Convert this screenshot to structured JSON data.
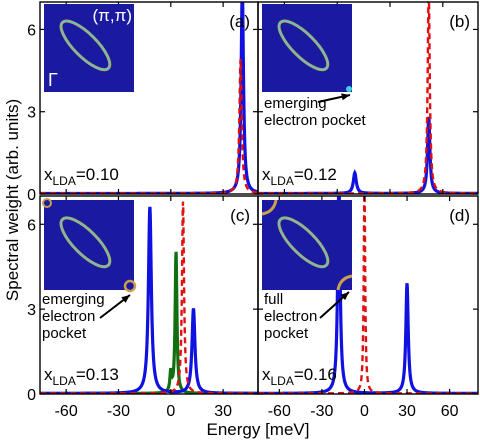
{
  "figure": {
    "ylabel": "Spectral weight (arb. units)",
    "xlabel": "Energy [meV]",
    "x_ticks": [
      "-60",
      "-30",
      "0",
      "30",
      "60"
    ],
    "y_ticks": [
      "0",
      "3",
      "6"
    ]
  },
  "colors": {
    "blue": "#1010e0",
    "red": "#e01010",
    "green": "#107010",
    "inset_bg": "#1a1aa0",
    "contour_outer": "#c8a050",
    "contour_inner": "#40d0e0"
  },
  "chart_data": [
    {
      "type": "line",
      "panel_label": "(a)",
      "doping_label": "x",
      "doping_sub": "LDA",
      "doping_value": "=0.10",
      "inset_corner_labels": [
        "(π,π)",
        "Γ"
      ],
      "annotation": "",
      "xlim": [
        -75,
        50
      ],
      "ylim": [
        0,
        7
      ],
      "series": [
        {
          "color": "blue",
          "style": "solid",
          "peaks": [
            [
              41,
              7.5,
              0.8
            ]
          ]
        },
        {
          "color": "red",
          "style": "dashed",
          "peaks": [
            [
              40,
              4.9,
              0.8
            ]
          ]
        }
      ]
    },
    {
      "type": "line",
      "panel_label": "(b)",
      "doping_label": "x",
      "doping_sub": "LDA",
      "doping_value": "=0.12",
      "inset_corner_labels": [],
      "annotation": "emerging\nelectron pocket",
      "xlim": [
        -75,
        50
      ],
      "ylim": [
        0,
        7
      ],
      "series": [
        {
          "color": "blue",
          "style": "solid",
          "peaks": [
            [
              -20,
              0.75,
              1.0
            ],
            [
              22,
              2.8,
              0.8
            ]
          ]
        },
        {
          "color": "red",
          "style": "dashed",
          "peaks": [
            [
              22,
              7.5,
              0.7
            ]
          ]
        }
      ]
    },
    {
      "type": "line",
      "panel_label": "(c)",
      "doping_label": "x",
      "doping_sub": "LDA",
      "doping_value": "=0.13",
      "inset_corner_labels": [],
      "annotation": "emerging\nelectron\npocket",
      "xlim": [
        -75,
        50
      ],
      "ylim": [
        0,
        7
      ],
      "series": [
        {
          "color": "blue",
          "style": "solid",
          "peaks": [
            [
              -12,
              6.6,
              1.0
            ],
            [
              13,
              3.0,
              1.0
            ]
          ]
        },
        {
          "color": "green",
          "style": "solid",
          "peaks": [
            [
              0,
              0.7,
              0.6
            ],
            [
              3,
              5.0,
              0.6
            ]
          ]
        },
        {
          "color": "red",
          "style": "dashed",
          "peaks": [
            [
              7,
              6.8,
              0.7
            ]
          ]
        }
      ]
    },
    {
      "type": "line",
      "panel_label": "(d)",
      "doping_label": "x",
      "doping_sub": "LDA",
      "doping_value": "=0.16",
      "inset_corner_labels": [],
      "annotation": "full\nelectron\npocket",
      "xlim": [
        -75,
        80
      ],
      "ylim": [
        0,
        7
      ],
      "series": [
        {
          "color": "blue",
          "style": "solid",
          "peaks": [
            [
              -18,
              7.5,
              1.0
            ],
            [
              30,
              3.9,
              1.0
            ]
          ]
        },
        {
          "color": "red",
          "style": "dashed",
          "peaks": [
            [
              0,
              7.5,
              0.6
            ]
          ]
        }
      ]
    }
  ]
}
